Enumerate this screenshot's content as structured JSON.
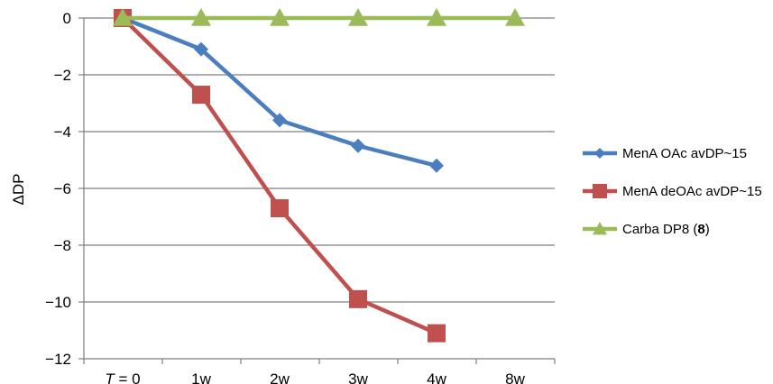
{
  "chart_data": {
    "type": "line",
    "title": "",
    "xlabel": "",
    "ylabel": "ΔDP",
    "categories": [
      "T = 0",
      "1w",
      "2w",
      "3w",
      "4w",
      "8w"
    ],
    "ylim": [
      -12,
      0
    ],
    "yticks": [
      0,
      -2,
      -4,
      -6,
      -8,
      -10,
      -12
    ],
    "ytick_labels": [
      "0",
      "−2",
      "−4",
      "−6",
      "−8",
      "−10",
      "−12"
    ],
    "grid": "horizontal",
    "legend_position": "right",
    "series": [
      {
        "name": "MenA OAc avDP~15",
        "color": "#4a7ebf",
        "marker": "diamond",
        "values": [
          0,
          -1.1,
          -3.6,
          -4.5,
          -5.2,
          null
        ]
      },
      {
        "name": "MenA deOAc avDP~15",
        "color": "#c0504d",
        "marker": "square",
        "values": [
          0,
          -2.7,
          -6.7,
          -9.9,
          -11.1,
          null
        ]
      },
      {
        "name": "Carba DP8 (8)",
        "color": "#9bbb59",
        "marker": "triangle",
        "values": [
          0,
          0,
          0,
          0,
          0,
          0
        ]
      }
    ]
  }
}
